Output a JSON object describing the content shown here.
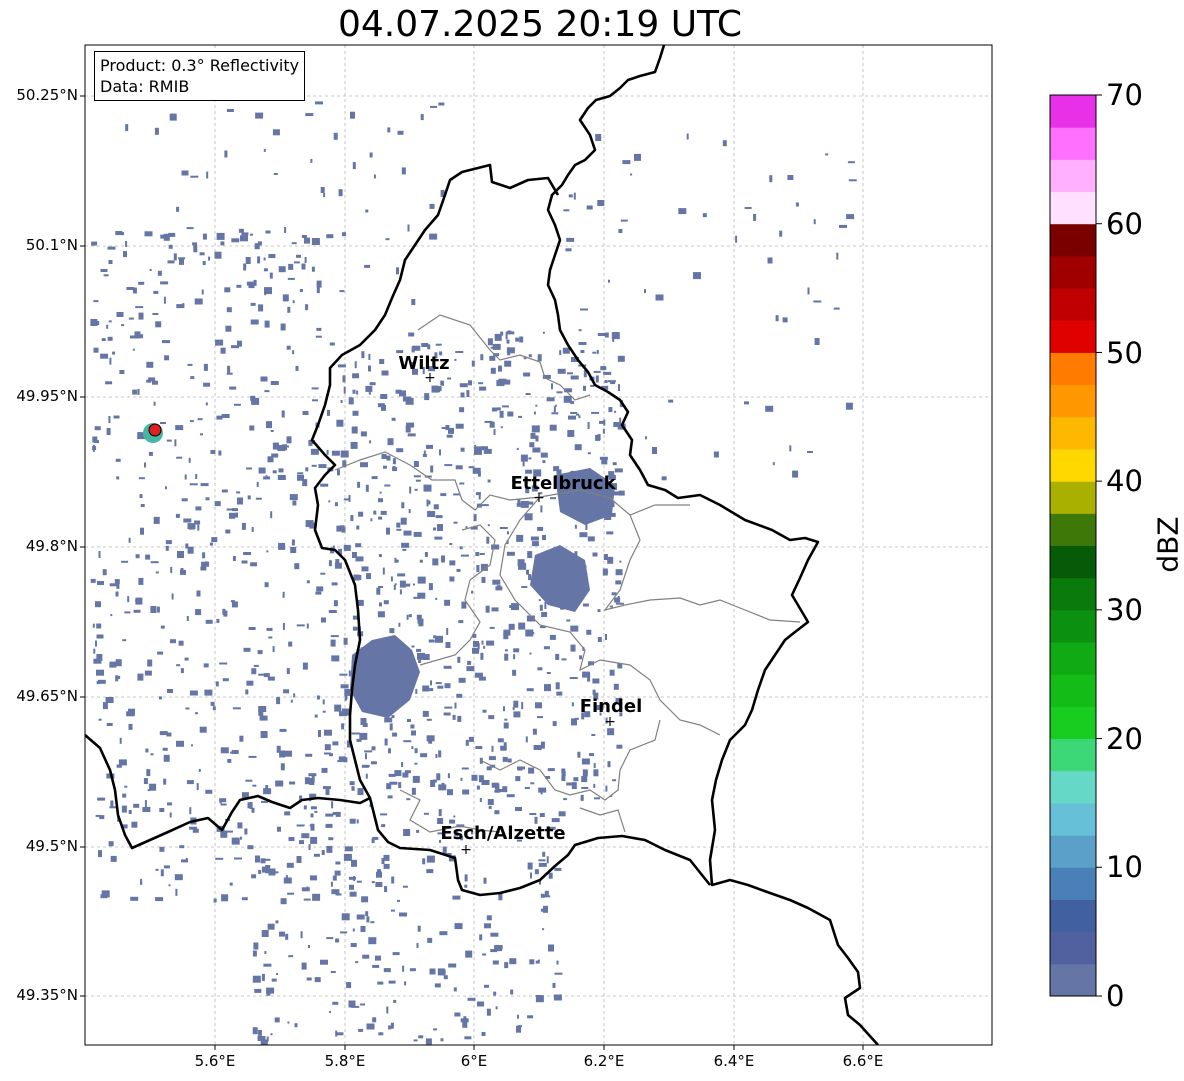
{
  "title": "04.07.2025 20:19 UTC",
  "info": {
    "product": "Product: 0.3° Reflectivity",
    "data_source": "Data: RMIB"
  },
  "map": {
    "lat_labels": [
      "50.25°N",
      "50.1°N",
      "49.95°N",
      "49.8°N",
      "49.65°N",
      "49.5°N",
      "49.35°N"
    ],
    "lon_labels": [
      "5.6°E",
      "5.8°E",
      "6°E",
      "6.2°E",
      "6.4°E",
      "6.6°E"
    ],
    "cities": [
      {
        "name": "Wiltz"
      },
      {
        "name": "Ettelbruck"
      },
      {
        "name": "Findel"
      },
      {
        "name": "Esch/Alzette"
      }
    ],
    "radar_marker_color": "#e02020",
    "echo_color": "#6475a6",
    "border_color": "#000000",
    "canton_color": "#808080"
  },
  "colorbar": {
    "label": "dBZ",
    "ticks": [
      "0",
      "10",
      "20",
      "30",
      "40",
      "50",
      "60",
      "70"
    ],
    "min": 0,
    "max": 70,
    "step": 2.5,
    "colors": [
      "#6475a6",
      "#5061a0",
      "#4160a0",
      "#4a80b8",
      "#5aa0c8",
      "#66c0d8",
      "#66d8c8",
      "#3cd878",
      "#18cc20",
      "#14bc18",
      "#10aa14",
      "#0c9010",
      "#0a7a0c",
      "#065a08",
      "#3e7808",
      "#aab000",
      "#ffd800",
      "#ffb800",
      "#ff9800",
      "#ff7c00",
      "#e00000",
      "#c00000",
      "#a00000",
      "#7a0000",
      "#ffe0ff",
      "#ffb0ff",
      "#ff70ff",
      "#e830e8"
    ]
  }
}
